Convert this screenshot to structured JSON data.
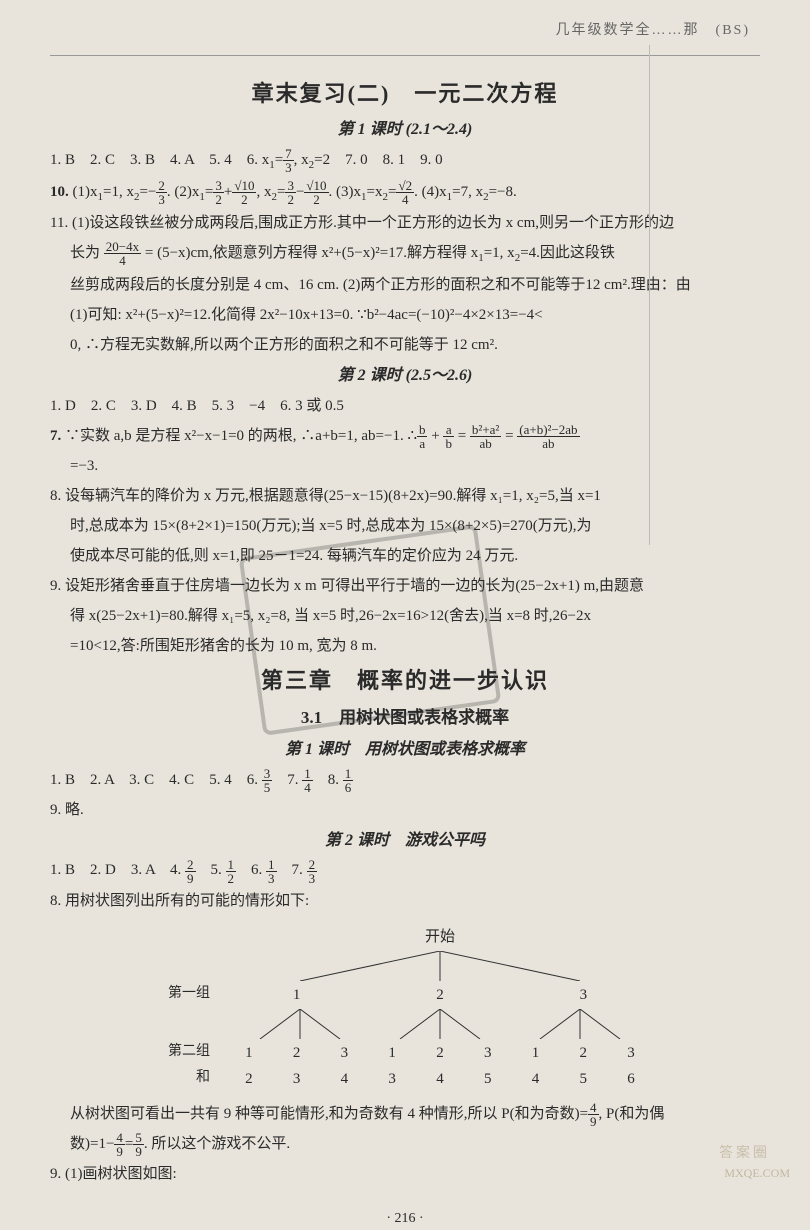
{
  "header": {
    "right": "几年级数学全……那　(BS)"
  },
  "chapter": {
    "title": "章末复习(二)　一元二次方程",
    "lesson1": {
      "title": "第 1 课时 (2.1～2.4)",
      "answers_line1": "1. B　2. C　3. B　4. A　5. 4　6. x₁=7/3, x₂=2　7. 0　8. 1　9. 0",
      "q10": "10. (1)x₁=1, x₂=−2/3. (2)x₁=3/2+√10/2, x₂=3/2−√10/2. (3)x₁=x₂=√2/4. (4)x₁=7, x₂=−8.",
      "q11_a": "11. (1)设这段铁丝被分成两段后,围成正方形.其中一个正方形的边长为 x cm,则另一个正方形的边",
      "q11_b": "长为 (20−4x)/4 = (5−x)cm,依题意列方程得 x²+(5−x)²=17.解方程得 x₁=1, x₂=4.因此这段铁",
      "q11_c": "丝剪成两段后的长度分别是 4 cm、16 cm. (2)两个正方形的面积之和不可能等于12 cm².理由：由",
      "q11_d": "(1)可知: x²+(5−x)²=12.化简得 2x²−10x+13=0. ∵b²−4ac=(−10)²−4×2×13=−4<",
      "q11_e": "0, ∴方程无实数解,所以两个正方形的面积之和不可能等于 12 cm²."
    },
    "lesson2": {
      "title": "第 2 课时 (2.5～2.6)",
      "answers_line1": "1. D　2. C　3. D　4. B　5. 3　−4　6. 3 或 0.5",
      "q7_a": "7. ∵实数 a,b 是方程 x²−x−1=0 的两根, ∴a+b=1, ab=−1. ∴b/a + a/b = (b²+a²)/ab = [(a+b)²−2ab]/ab",
      "q7_b": "=−3.",
      "q8_a": "8. 设每辆汽车的降价为 x 万元,根据题意得(25−x−15)(8+2x)=90.解得 x₁=1, x₂=5,当 x=1",
      "q8_b": "时,总成本为 15×(8+2×1)=150(万元);当 x=5 时,总成本为 15×(8+2×5)=270(万元),为",
      "q8_c": "使成本尽可能的低,则 x=1,即 25－1=24. 每辆汽车的定价应为 24 万元.",
      "q9_a": "9. 设矩形猪舍垂直于住房墙一边长为 x m 可得出平行于墙的一边的长为(25−2x+1) m,由题意",
      "q9_b": "得 x(25−2x+1)=80.解得 x₁=5, x₂=8, 当 x=5 时,26−2x=16>12(舍去),当 x=8 时,26−2x",
      "q9_c": "=10<12,答:所围矩形猪舍的长为 10 m, 宽为 8 m."
    }
  },
  "chapter3": {
    "title": "第三章　概率的进一步认识",
    "section31": {
      "title": "3.1　用树状图或表格求概率",
      "lesson1": {
        "title": "第 1 课时　用树状图或表格求概率",
        "answers": "1. B　2. A　3. C　4. C　5. 4　6. 3/5　7. 1/4　8. 1/6",
        "q9": "9. 略."
      },
      "lesson2": {
        "title": "第 2 课时　游戏公平吗",
        "answers": "1. B　2. D　3. A　4. 2/9　5. 1/2　6. 1/3　7. 2/3",
        "q8_intro": "8. 用树状图列出所有的可能的情形如下:",
        "q8_conclusion_a": "从树状图可看出一共有 9 种等可能情形,和为奇数有 4 种情形,所以 P(和为奇数)=4/9, P(和为偶",
        "q8_conclusion_b": "数)=1−4/9=5/9. 所以这个游戏不公平.",
        "q9": "9. (1)画树状图如图:"
      }
    }
  },
  "tree": {
    "start": "开始",
    "row1_label": "第一组",
    "row1": [
      "1",
      "2",
      "3"
    ],
    "row2_label": "第二组",
    "row2": [
      "1",
      "2",
      "3",
      "1",
      "2",
      "3",
      "1",
      "2",
      "3"
    ],
    "row3_label": "和",
    "row3": [
      "2",
      "3",
      "4",
      "3",
      "4",
      "5",
      "4",
      "5",
      "6"
    ]
  },
  "page_number": "· 216 ·",
  "watermark": {
    "brand": "答案圈",
    "url": "MXQE.COM"
  }
}
